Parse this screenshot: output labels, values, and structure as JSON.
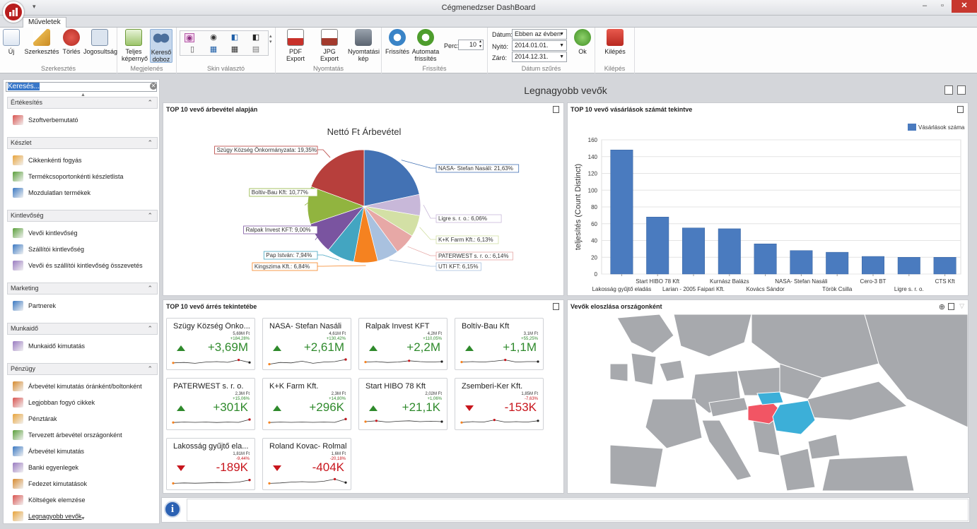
{
  "window": {
    "title": "Cégmenedzser DashBoard",
    "qat": "▾",
    "minimize": "–",
    "restore": "▫",
    "close": "✕"
  },
  "tabs": [
    {
      "label": "Műveletek"
    }
  ],
  "ribbon": {
    "groups": [
      {
        "label": "Szerkesztés",
        "buttons": [
          "Új",
          "Szerkesztés",
          "Törlés",
          "Jogosultság"
        ]
      },
      {
        "label": "Megjelenés",
        "buttons": [
          "Teljes képernyő",
          "Kereső doboz"
        ]
      },
      {
        "label": "Skin választó"
      },
      {
        "label": "Nyomtatás",
        "buttons": [
          "PDF Export",
          "JPG Export",
          "Nyomtatási kép"
        ]
      },
      {
        "label": "Frissítés",
        "buttons": [
          "Frissítés",
          "Automata frissítés"
        ],
        "perc_label": "Perc:",
        "perc_value": "10"
      },
      {
        "label": "Dátum szűrés",
        "datum_label": "Dátum:",
        "datum_value": "Ebben az évben",
        "nyito_label": "Nyitó:",
        "nyito_value": "2014.01.01.",
        "zaro_label": "Záró:",
        "zaro_value": "2014.12.31.",
        "ok": "Ok"
      },
      {
        "label": "Kilépés",
        "buttons": [
          "Kilépés"
        ]
      }
    ]
  },
  "sidebar": {
    "search_placeholder": "Keresés...",
    "sections": [
      {
        "title": "Értékesítés",
        "items": [
          "Szoftverbemutató"
        ]
      },
      {
        "title": "Készlet",
        "items": [
          "Cikkenkénti fogyás",
          "Termékcsoportonkénti készletlista",
          "Mozdulatlan termékek"
        ]
      },
      {
        "title": "Kintlevőség",
        "items": [
          "Vevői kintlevőség",
          "Szállítói kintlevőség",
          "Vevői és szállítói kintlevőség összevetés"
        ]
      },
      {
        "title": "Marketing",
        "items": [
          "Partnerek"
        ]
      },
      {
        "title": "Munkaidő",
        "items": [
          "Munkaidő kimutatás"
        ]
      },
      {
        "title": "Pénzügy",
        "items": [
          "Árbevétel kimutatás óránként/boltonként",
          "Legjobban fogyó cikkek",
          "Pénztárak",
          "Tervezett árbevétel országonként",
          "Árbevétel kimutatás",
          "Banki egyenlegek",
          "Fedezet kimutatások",
          "Költségek elemzése",
          "Legnagyobb vevők"
        ]
      }
    ]
  },
  "dashboard": {
    "title": "Legnagyobb vevők"
  },
  "panels": {
    "pie": {
      "title": "TOP 10 vevő árbevétel alapján",
      "chart_title": "Nettó Ft Árbevétel"
    },
    "bar": {
      "title": "TOP 10 vevő vásárlások számát tekintve"
    },
    "cards": {
      "title": "TOP 10 vevő árrés tekintetébe"
    },
    "map": {
      "title": "Vevők eloszlása országonként"
    }
  },
  "chart_data": [
    {
      "type": "pie",
      "title": "Nettó Ft Árbevétel",
      "slices": [
        {
          "label": "NASA- Stefan Nasáli: 21,63%",
          "value": 21.63,
          "color": "#4372b4"
        },
        {
          "label": "Ligre s. r. o.: 6,06%",
          "value": 6.06,
          "color": "#c8b8d9"
        },
        {
          "label": "K+K Farm Kft.: 6,13%",
          "value": 6.13,
          "color": "#d3e0a5"
        },
        {
          "label": "PATERWEST s. r. o.: 6,14%",
          "value": 6.14,
          "color": "#e7a8a6"
        },
        {
          "label": "UTI KFT: 6,15%",
          "value": 6.15,
          "color": "#a9c1df"
        },
        {
          "label": "Kingszima Kft.: 6,84%",
          "value": 6.84,
          "color": "#f58220"
        },
        {
          "label": "Pap István: 7,94%",
          "value": 7.94,
          "color": "#43a5c1"
        },
        {
          "label": "Ralpak Invest KFT: 9,00%",
          "value": 9.0,
          "color": "#7a54a0"
        },
        {
          "label": "Boltiv-Bau Kft: 10,77%",
          "value": 10.77,
          "color": "#91b43f"
        },
        {
          "label": "Szügy Község Önkormányzata: 19,35%",
          "value": 19.35,
          "color": "#b73f3c"
        }
      ]
    },
    {
      "type": "bar",
      "legend": "Vásárlások száma",
      "ylabel": "teljesítés (Count Distinct)",
      "ylim": [
        0,
        160
      ],
      "yticks": [
        0,
        20,
        40,
        60,
        80,
        100,
        120,
        140,
        160
      ],
      "categories": [
        "Lakosság gyűjtő eladás",
        "Start HIBO 78 Kft",
        "Larian - 2005 Faipari Kft.",
        "Kurnász Balázs",
        "Kovács Sándor",
        "NASA- Stefan Nasáli",
        "Török Csilla",
        "Cero-3 BT",
        "Ligre s. r. o.",
        "CTS Kft"
      ],
      "values": [
        148,
        68,
        55,
        54,
        36,
        28,
        26,
        21,
        20,
        20
      ],
      "color": "#4a7bbf"
    }
  ],
  "cards": [
    {
      "name": "Szügy Község Önko...",
      "target": "5,69M Ft",
      "pct": "+184,28%",
      "value": "+3,69M",
      "trend": "up",
      "spark": [
        0.35,
        0.4,
        0.3,
        0.45,
        0.5,
        0.42,
        0.7,
        0.4
      ]
    },
    {
      "name": "NASA- Stefan Nasáli",
      "target": "4,61M Ft",
      "pct": "+130,42%",
      "value": "+2,61M",
      "trend": "up",
      "spark": [
        0.2,
        0.4,
        0.35,
        0.55,
        0.3,
        0.45,
        0.5,
        0.75
      ]
    },
    {
      "name": "Ralpak Invest KFT",
      "target": "4,2M Ft",
      "pct": "+110,05%",
      "value": "+2,2M",
      "trend": "up",
      "spark": [
        0.45,
        0.5,
        0.4,
        0.45,
        0.6,
        0.5,
        0.45,
        0.5
      ]
    },
    {
      "name": "Boltív-Bau Kft",
      "target": "3,1M Ft",
      "pct": "+55,25%",
      "value": "+1,1M",
      "trend": "up",
      "spark": [
        0.45,
        0.5,
        0.45,
        0.55,
        0.7,
        0.45,
        0.5,
        0.5
      ]
    },
    {
      "name": "PATERWEST s. r. o.",
      "target": "2,3M Ft",
      "pct": "+15,06%",
      "value": "+301K",
      "trend": "up",
      "spark": [
        0.4,
        0.45,
        0.42,
        0.45,
        0.4,
        0.45,
        0.42,
        0.75
      ]
    },
    {
      "name": "K+K Farm Kft.",
      "target": "2,3M Ft",
      "pct": "+14,80%",
      "value": "+296K",
      "trend": "up",
      "spark": [
        0.4,
        0.45,
        0.42,
        0.45,
        0.42,
        0.45,
        0.42,
        0.8
      ]
    },
    {
      "name": "Start HIBO 78 Kft",
      "target": "2,02M Ft",
      "pct": "+1,06%",
      "value": "+21,1K",
      "trend": "up",
      "spark": [
        0.5,
        0.6,
        0.45,
        0.55,
        0.6,
        0.5,
        0.55,
        0.5
      ]
    },
    {
      "name": "Zsemberi-Ker Kft.",
      "target": "1,85M Ft",
      "pct": "-7,63%",
      "value": "-153K",
      "trend": "down",
      "spark": [
        0.4,
        0.5,
        0.45,
        0.7,
        0.45,
        0.5,
        0.45,
        0.6
      ]
    },
    {
      "name": "Lakosság gyűjtő ela...",
      "target": "1,81M Ft",
      "pct": "-9,44%",
      "value": "-189K",
      "trend": "down",
      "spark": [
        0.3,
        0.35,
        0.32,
        0.35,
        0.4,
        0.38,
        0.45,
        0.7
      ]
    },
    {
      "name": "Roland Kovac- Rolmal",
      "target": "1,6M Ft",
      "pct": "-20,18%",
      "value": "-404K",
      "trend": "down",
      "spark": [
        0.3,
        0.35,
        0.45,
        0.5,
        0.45,
        0.55,
        0.8,
        0.4
      ]
    }
  ],
  "colors": {
    "accent": "#3877c9",
    "positive": "#2f8a2c",
    "negative": "#c8161d",
    "map_land": "#a7a9ad",
    "map_highlight_red": "#f25564",
    "map_highlight_blue": "#3cafd8"
  }
}
